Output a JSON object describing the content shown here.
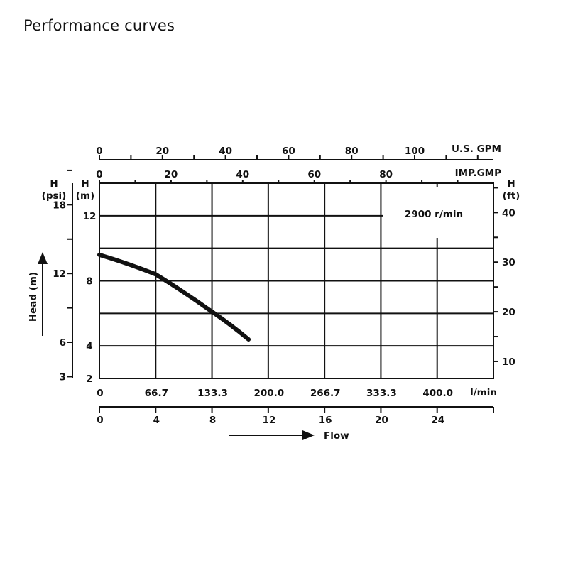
{
  "title": "Performance curves",
  "chart_data": {
    "type": "line",
    "grid": true,
    "legend": "none",
    "annotation": "2900 r/min",
    "x": [
      0,
      4,
      8,
      10.6
    ],
    "series": [
      {
        "values": [
          9.6,
          8.4,
          6.1,
          4.4
        ]
      }
    ],
    "xlim": [
      0,
      28
    ],
    "ylim": [
      2,
      14
    ],
    "axes": {
      "usgpm": {
        "label": "U.S. GPM",
        "ticks": [
          "0",
          "20",
          "40",
          "60",
          "80",
          "100"
        ],
        "values": [
          0,
          20,
          40,
          60,
          80,
          100
        ],
        "max": 125
      },
      "impgpm": {
        "label": "IMP.GMP",
        "ticks": [
          "0",
          "20",
          "40",
          "60",
          "80"
        ],
        "values": [
          0,
          20,
          40,
          60,
          80
        ],
        "max": 110
      },
      "lmin": {
        "label": "l/min",
        "ticks": [
          "0",
          "66.7",
          "133.3",
          "200.0",
          "266.7",
          "333.3",
          "400.0"
        ],
        "values": [
          0,
          66.7,
          133.3,
          200.0,
          266.7,
          333.3,
          400.0
        ]
      },
      "m3h": {
        "ticks": [
          "0",
          "4",
          "8",
          "12",
          "16",
          "20",
          "24"
        ],
        "values": [
          0,
          4,
          8,
          12,
          16,
          20,
          24
        ]
      },
      "head_m": {
        "label_h": "H",
        "label_unit": "(m)",
        "ticks": [
          "2",
          "4",
          "8",
          "12"
        ],
        "values": [
          2,
          4,
          8,
          12
        ]
      },
      "psi": {
        "label_h": "H",
        "label_unit": "(psi)",
        "ticks": [
          "3",
          "6",
          "12",
          "18"
        ],
        "values": [
          3,
          6,
          12,
          18
        ]
      },
      "ft": {
        "label_h": "H",
        "label_unit": "(ft)",
        "ticks": [
          "10",
          "20",
          "30",
          "40"
        ],
        "values": [
          10,
          20,
          30,
          40
        ]
      }
    },
    "head_arrow_label": "Head (m)",
    "flow_arrow_label": "Flow"
  }
}
